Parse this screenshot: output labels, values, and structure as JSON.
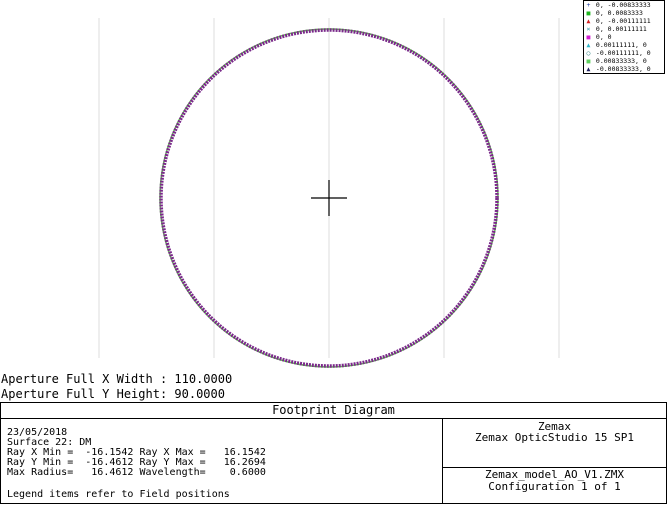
{
  "legend": [
    {
      "marker": "+",
      "color": "#1f3a9a",
      "label": "0, -0.00833333"
    },
    {
      "marker": "■",
      "color": "#1fb51f",
      "label": "0, 0.0083333"
    },
    {
      "marker": "▲",
      "color": "#d41f1f",
      "label": "0, -0.00111111"
    },
    {
      "marker": "×",
      "color": "#1f8fa0",
      "label": "0, 0.00111111"
    },
    {
      "marker": "■",
      "color": "#d21fd2",
      "label": "0, 0"
    },
    {
      "marker": "▲",
      "color": "#2fb5c8",
      "label": "0.00111111, 0"
    },
    {
      "marker": "○",
      "color": "#1f7a7a",
      "label": "-0.00111111, 0"
    },
    {
      "marker": "■",
      "color": "#5fd05f",
      "label": "0.00833333, 0"
    },
    {
      "marker": "▲",
      "color": "#1f1f5f",
      "label": "-0.00833333, 0"
    }
  ],
  "aperture": {
    "x_width": "Aperture Full X Width : 110.0000",
    "y_height": "Aperture Full Y Height: 90.0000"
  },
  "info": {
    "title": "Footprint Diagram",
    "date": "23/05/2018",
    "surface": "Surface 22: DM",
    "ray_x": "Ray X Min =  -16.1542 Ray X Max =   16.1542",
    "ray_y": "Ray Y Min =  -16.4612 Ray Y Max =   16.2694",
    "max_radius": "Max Radius=   16.4612 Wavelength=    0.6000",
    "legend_note": "Legend items refer to Field positions",
    "company": "Zemax",
    "product": "Zemax OpticStudio 15 SP1",
    "file": "Zemax_model_AO_V1.ZMX",
    "config": "Configuration 1 of 1"
  },
  "colors": {
    "ring_primary": "#7a2a8a",
    "ring_secondary": "#5ecf4a",
    "grid": "#dcdcdc",
    "crosshair": "#000000"
  }
}
